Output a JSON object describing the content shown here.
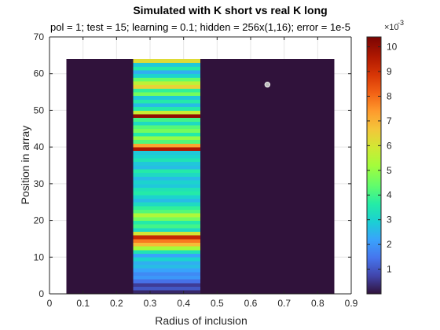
{
  "chart_data": {
    "type": "heatmap",
    "title": "Simulated with K short vs real K long",
    "subtitle": "pol = 1; test = 15; learning = 0.1; hidden = 256x(1,16); error = 1e-5",
    "xlabel": "Radius of inclusion",
    "ylabel": "Position in array",
    "xlim": [
      0,
      0.9
    ],
    "ylim": [
      0,
      70
    ],
    "xticks": [
      "0",
      "0.1",
      "0.2",
      "0.3",
      "0.4",
      "0.5",
      "0.6",
      "0.7",
      "0.8",
      "0.9"
    ],
    "yticks": [
      "0",
      "10",
      "20",
      "30",
      "40",
      "50",
      "60",
      "70"
    ],
    "grid": true,
    "columns": [
      {
        "x_from": 0.05,
        "x_to": 0.25
      },
      {
        "x_from": 0.25,
        "x_to": 0.45
      },
      {
        "x_from": 0.45,
        "x_to": 0.85
      }
    ],
    "rows_y_from": 0,
    "rows_y_to": 64,
    "column_values": [
      [
        0,
        0,
        0,
        0,
        0,
        0,
        0,
        0,
        0,
        0,
        0,
        0,
        0,
        0,
        0,
        0,
        0,
        0,
        0,
        0,
        0,
        0,
        0,
        0,
        0,
        0,
        0,
        0,
        0,
        0,
        0,
        0,
        0,
        0,
        0,
        0,
        0,
        0,
        0,
        0,
        0,
        0,
        0,
        0,
        0,
        0,
        0,
        0,
        0,
        0,
        0,
        0,
        0,
        0,
        0,
        0,
        0,
        0,
        0,
        0,
        0,
        0,
        0,
        0
      ],
      [
        0.3,
        1.0,
        0.6,
        1.4,
        2.0,
        1.8,
        2.2,
        2.6,
        2.4,
        3.0,
        2.2,
        3.4,
        5.2,
        6.8,
        7.8,
        9.2,
        6.0,
        3.2,
        4.0,
        3.6,
        4.6,
        5.4,
        4.2,
        3.8,
        3.2,
        2.6,
        3.0,
        3.6,
        3.4,
        2.8,
        3.0,
        2.6,
        3.2,
        3.6,
        2.6,
        2.8,
        3.4,
        3.0,
        2.8,
        9.6,
        7.2,
        4.2,
        5.0,
        3.6,
        4.6,
        4.2,
        3.2,
        4.0,
        10.0,
        5.8,
        3.6,
        2.6,
        3.6,
        2.8,
        4.6,
        3.8,
        6.4,
        5.6,
        4.4,
        3.0,
        2.4,
        3.6,
        2.8,
        6.2
      ],
      [
        0,
        0,
        0,
        0,
        0,
        0,
        0,
        0,
        0,
        0,
        0,
        0,
        0,
        0,
        0,
        0,
        0,
        0,
        0,
        0,
        0,
        0,
        0,
        0,
        0,
        0,
        0,
        0,
        0,
        0,
        0,
        0,
        0,
        0,
        0,
        0,
        0,
        0,
        0,
        0,
        0,
        0,
        0,
        0,
        0,
        0,
        0,
        0,
        0,
        0,
        0,
        0,
        0,
        0,
        0,
        0,
        0,
        0,
        0,
        0,
        0,
        0,
        0,
        0
      ]
    ],
    "marker": {
      "x": 0.65,
      "y": 57
    },
    "colorbar": {
      "min": 0,
      "max": 10.4,
      "ticks": [
        "1",
        "2",
        "3",
        "4",
        "5",
        "6",
        "7",
        "8",
        "9",
        "10"
      ],
      "exponent_base": "×10",
      "exponent_power": "-3"
    },
    "colormap": "turbo"
  }
}
